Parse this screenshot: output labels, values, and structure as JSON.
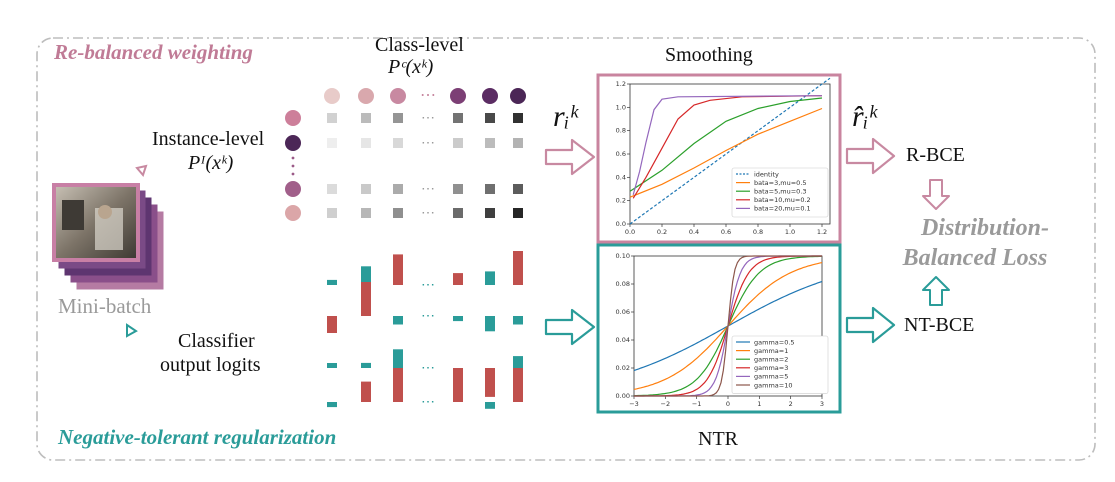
{
  "sections": {
    "top_title": "Re-balanced weighting",
    "bottom_title": "Negative-tolerant regularization"
  },
  "labels": {
    "class_level": "Class-level",
    "class_level_math": "Pᶜ(xᵏ)",
    "instance_level": "Instance-level",
    "instance_level_math": "Pᴵ(xᵏ)",
    "mini_batch": "Mini-batch",
    "classifier_line1": "Classifier",
    "classifier_line2": "output logits",
    "smoothing": "Smoothing",
    "ntr": "NTR",
    "r_ik": "rᵢᵏ",
    "r_hat_ik": "r̂ᵢᵏ",
    "r_bce": "R-BCE",
    "nt_bce": "NT-BCE",
    "db_loss_line1": "Distribution-",
    "db_loss_line2": "Balanced Loss"
  },
  "colors": {
    "pink": "#c9849f",
    "teal": "#2a9c99",
    "red": "#c0504d",
    "purple": "#4f2b5b",
    "border": "#bdbdbd"
  },
  "chart_data": [
    {
      "type": "line",
      "name": "smoothing-plot",
      "xlim": [
        0.0,
        1.25
      ],
      "ylim": [
        0.0,
        1.2
      ],
      "xticks": [
        "0.0",
        "0.2",
        "0.4",
        "0.6",
        "0.8",
        "1.0",
        "1.2"
      ],
      "yticks": [
        "0.0",
        "0.2",
        "0.4",
        "0.6",
        "0.8",
        "1.0",
        "1.2"
      ],
      "legend_position": "bottom-right",
      "grid": false,
      "series": [
        {
          "name": "identity",
          "color": "#1f77b4",
          "dashed": true,
          "x": [
            0.0,
            1.25
          ],
          "y": [
            0.0,
            1.25
          ]
        },
        {
          "name": "bata=3,mu=0.5",
          "color": "#ff7f0e",
          "x": [
            0.0,
            0.2,
            0.4,
            0.6,
            0.8,
            1.0,
            1.2
          ],
          "y": [
            0.23,
            0.34,
            0.48,
            0.63,
            0.77,
            0.88,
            0.99
          ]
        },
        {
          "name": "bata=5,mu=0.3",
          "color": "#2ca02c",
          "x": [
            0.0,
            0.2,
            0.4,
            0.6,
            0.8,
            1.0,
            1.2
          ],
          "y": [
            0.28,
            0.46,
            0.69,
            0.88,
            0.99,
            1.05,
            1.08
          ]
        },
        {
          "name": "bata=10,mu=0.2",
          "color": "#d62728",
          "x": [
            0.02,
            0.1,
            0.2,
            0.3,
            0.4,
            0.5,
            0.7,
            1.2
          ],
          "y": [
            0.22,
            0.4,
            0.65,
            0.9,
            1.02,
            1.06,
            1.09,
            1.1
          ]
        },
        {
          "name": "bata=20,mu=0.1",
          "color": "#9467bd",
          "x": [
            0.02,
            0.06,
            0.1,
            0.15,
            0.2,
            0.3,
            1.2
          ],
          "y": [
            0.25,
            0.45,
            0.7,
            0.98,
            1.07,
            1.09,
            1.1
          ]
        }
      ]
    },
    {
      "type": "line",
      "name": "ntr-plot",
      "xlim": [
        -3,
        3
      ],
      "ylim": [
        0.0,
        0.1
      ],
      "xticks": [
        "−3",
        "−2",
        "−1",
        "0",
        "1",
        "2",
        "3"
      ],
      "yticks": [
        "0.00",
        "0.02",
        "0.04",
        "0.06",
        "0.08",
        "0.10"
      ],
      "legend_position": "bottom-right",
      "grid": false,
      "series": [
        {
          "name": "gamma=0.5",
          "color": "#1f77b4",
          "gamma": 0.5
        },
        {
          "name": "gamma=1",
          "color": "#ff7f0e",
          "gamma": 1
        },
        {
          "name": "gamma=2",
          "color": "#2ca02c",
          "gamma": 2
        },
        {
          "name": "gamma=3",
          "color": "#d62728",
          "gamma": 3
        },
        {
          "name": "gamma=5",
          "color": "#9467bd",
          "gamma": 5
        },
        {
          "name": "gamma=10",
          "color": "#8c564b",
          "gamma": 10
        }
      ]
    }
  ],
  "matrices": {
    "class_circles": [
      "#e8cbc9",
      "#d9a8ad",
      "#c889a1",
      "#7c3f75",
      "#5b2c63",
      "#4b2656"
    ],
    "instance_circles": [
      "#cd7f9a",
      "#4c2757",
      "#a15f8a",
      "#dba6a8"
    ],
    "square_shades": [
      "#cfcfcf",
      "#b7b7b7",
      "#8f8f8f",
      "#6b6b6b",
      "#3f3f3f",
      "#262626"
    ],
    "row_opacity": [
      0.95,
      0.35,
      0.75,
      1.0
    ],
    "logit_rows": [
      {
        "colors": [
          "#2a9c99",
          "#2a9c99",
          "#c0504d",
          "#c0504d",
          "#2a9c99",
          "#c0504d"
        ],
        "signs": [
          1,
          1,
          1,
          1,
          1,
          1
        ],
        "magnitudes": [
          0.15,
          0.55,
          0.9,
          0.35,
          0.4,
          1.0
        ]
      },
      {
        "colors": [
          "#c0504d",
          "#c0504d",
          "#2a9c99",
          "#2a9c99",
          "#2a9c99",
          "#2a9c99"
        ],
        "signs": [
          -1,
          1,
          -1,
          -1,
          -1,
          -1
        ],
        "magnitudes": [
          0.5,
          1.0,
          0.25,
          0.15,
          0.45,
          0.25
        ]
      },
      {
        "colors": [
          "#2a9c99",
          "#2a9c99",
          "#2a9c99",
          "#c0504d",
          "#c0504d",
          "#2a9c99"
        ],
        "signs": [
          1,
          1,
          1,
          -1,
          -1,
          1
        ],
        "magnitudes": [
          0.12,
          0.15,
          0.55,
          1.0,
          0.85,
          0.35
        ]
      },
      {
        "colors": [
          "#2a9c99",
          "#c0504d",
          "#c0504d",
          "#c0504d",
          "#2a9c99",
          "#c0504d"
        ],
        "signs": [
          -1,
          1,
          1,
          1,
          -1,
          1
        ],
        "magnitudes": [
          0.15,
          0.6,
          1.0,
          0.85,
          0.2,
          1.0
        ]
      }
    ]
  }
}
